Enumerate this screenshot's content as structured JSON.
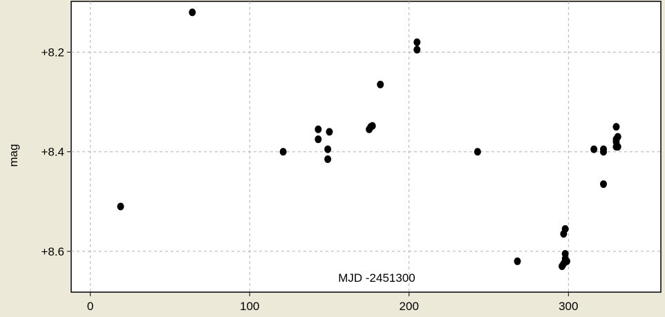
{
  "chart_data": {
    "type": "scatter",
    "title": "",
    "xlabel": "MJD -2451300",
    "ylabel": "mag",
    "xlim": [
      -12,
      358
    ],
    "ylim": [
      8.098,
      8.682
    ],
    "y_inverted": true,
    "grid": true,
    "legend": "none",
    "x_ticks": [
      0,
      100,
      200,
      300
    ],
    "x_tick_labels": [
      "0",
      "100",
      "200",
      "300"
    ],
    "y_ticks": [
      8.2,
      8.4,
      8.6
    ],
    "y_tick_labels": [
      "+8.2",
      "+8.4",
      "+8.6"
    ],
    "marker_color": "#000000",
    "series": [
      {
        "points": [
          [
            19,
            8.51
          ],
          [
            64,
            8.12
          ],
          [
            121,
            8.4
          ],
          [
            143,
            8.355
          ],
          [
            143,
            8.375
          ],
          [
            149,
            8.395
          ],
          [
            149,
            8.415
          ],
          [
            150,
            8.36
          ],
          [
            175,
            8.355
          ],
          [
            176,
            8.35
          ],
          [
            177,
            8.348
          ],
          [
            182,
            8.265
          ],
          [
            205,
            8.18
          ],
          [
            205,
            8.195
          ],
          [
            243,
            8.4
          ],
          [
            268,
            8.62
          ],
          [
            296,
            8.63
          ],
          [
            297,
            8.625
          ],
          [
            297,
            8.565
          ],
          [
            298,
            8.605
          ],
          [
            298,
            8.615
          ],
          [
            298,
            8.555
          ],
          [
            299,
            8.62
          ],
          [
            316,
            8.395
          ],
          [
            322,
            8.4
          ],
          [
            322,
            8.395
          ],
          [
            322,
            8.465
          ],
          [
            330,
            8.35
          ],
          [
            330,
            8.375
          ],
          [
            330,
            8.38
          ],
          [
            330,
            8.39
          ],
          [
            331,
            8.39
          ],
          [
            331,
            8.37
          ]
        ]
      }
    ]
  }
}
